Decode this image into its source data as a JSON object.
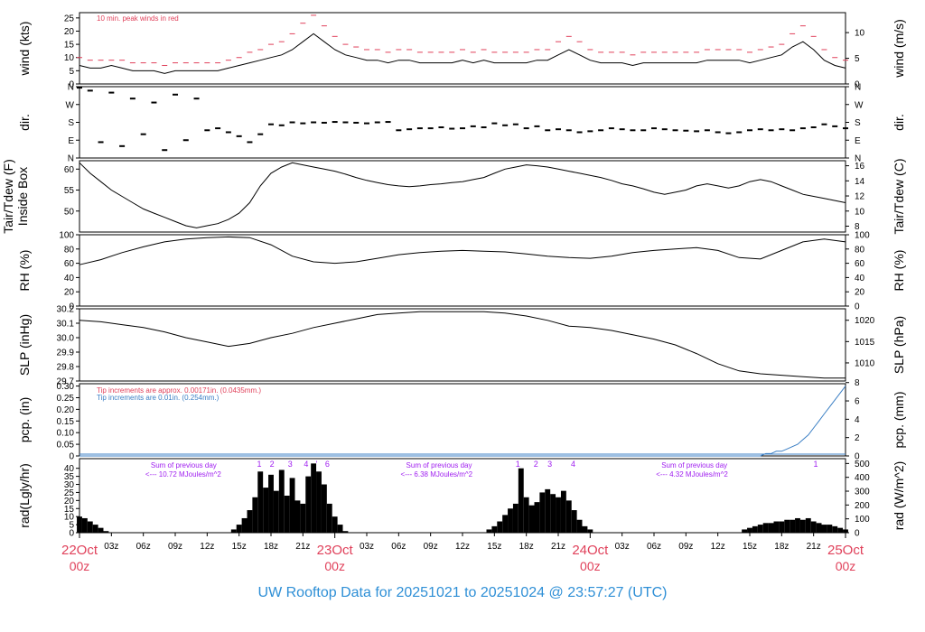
{
  "title": "UW Rooftop Data for 20251021  to  20251024 @ 23:57:27  (UTC)",
  "colors": {
    "peak_red": "#e0405a",
    "precip_blue": "#3b7fc4",
    "radiation_purple": "#a020f0",
    "date_red": "#e0405a",
    "title_blue": "#2e8fd6"
  },
  "x_axis": {
    "hours_total": 72,
    "minor_labels": [
      "03z",
      "06z",
      "09z",
      "12z",
      "15z",
      "18z",
      "21z",
      "03z",
      "06z",
      "09z",
      "12z",
      "15z",
      "18z",
      "21z",
      "03z",
      "06z",
      "09z",
      "12z",
      "15z",
      "18z",
      "21z"
    ],
    "minor_hours": [
      3,
      6,
      9,
      12,
      15,
      18,
      21,
      27,
      30,
      33,
      36,
      39,
      42,
      45,
      51,
      54,
      57,
      60,
      63,
      66,
      69
    ],
    "date_labels": [
      {
        "date": "22Oct",
        "time": "00z",
        "hour": 0
      },
      {
        "date": "23Oct",
        "time": "00z",
        "hour": 24
      },
      {
        "date": "24Oct",
        "time": "00z",
        "hour": 48
      },
      {
        "date": "25Oct",
        "time": "00z",
        "hour": 72
      }
    ]
  },
  "chart_data": [
    {
      "type": "line",
      "panel": "wind",
      "left_label": "wind (kts)",
      "right_label": "wind (m/s)",
      "annotation": "10 min. peak winds in red",
      "left_ticks": [
        0,
        5,
        10,
        15,
        20,
        25
      ],
      "right_ticks": [
        0,
        5,
        10
      ],
      "ylim": [
        0,
        27
      ],
      "x_hours": [
        0,
        1,
        2,
        3,
        4,
        5,
        6,
        7,
        8,
        9,
        10,
        11,
        12,
        13,
        14,
        15,
        16,
        17,
        18,
        19,
        20,
        21,
        22,
        23,
        24,
        25,
        26,
        27,
        28,
        29,
        30,
        31,
        32,
        33,
        34,
        35,
        36,
        37,
        38,
        39,
        40,
        41,
        42,
        43,
        44,
        45,
        46,
        47,
        48,
        49,
        50,
        51,
        52,
        53,
        54,
        55,
        56,
        57,
        58,
        59,
        60,
        61,
        62,
        63,
        64,
        65,
        66,
        67,
        68,
        69,
        70,
        71,
        72
      ],
      "series": [
        {
          "name": "wind",
          "values": [
            7,
            6,
            6,
            7,
            6,
            5,
            5,
            5,
            4,
            5,
            5,
            5,
            5,
            5,
            6,
            7,
            8,
            9,
            10,
            11,
            13,
            16,
            19,
            16,
            13,
            11,
            10,
            9,
            9,
            8,
            9,
            9,
            8,
            8,
            8,
            8,
            9,
            8,
            9,
            8,
            8,
            8,
            8,
            9,
            9,
            11,
            13,
            11,
            9,
            8,
            8,
            8,
            7,
            8,
            8,
            8,
            8,
            8,
            8,
            9,
            9,
            9,
            9,
            8,
            9,
            10,
            11,
            14,
            16,
            13,
            9,
            7,
            6
          ]
        },
        {
          "name": "peak",
          "values": [
            10,
            9,
            9,
            9,
            9,
            8,
            8,
            8,
            7,
            8,
            8,
            8,
            8,
            8,
            9,
            10,
            12,
            13,
            15,
            16,
            19,
            23,
            26,
            22,
            18,
            15,
            14,
            13,
            13,
            12,
            13,
            13,
            12,
            12,
            12,
            12,
            13,
            12,
            13,
            12,
            12,
            12,
            12,
            13,
            13,
            16,
            18,
            16,
            13,
            12,
            12,
            12,
            11,
            12,
            12,
            12,
            12,
            12,
            12,
            13,
            13,
            13,
            13,
            12,
            13,
            14,
            15,
            19,
            22,
            18,
            13,
            10,
            9
          ]
        }
      ]
    },
    {
      "type": "scatter",
      "panel": "dir",
      "left_label": "dir.",
      "right_label": "dir.",
      "left_ticks": [
        "N",
        "E",
        "S",
        "W",
        "N"
      ],
      "right_ticks": [
        "N",
        "E",
        "S",
        "W",
        "N"
      ],
      "ylim": [
        0,
        360
      ],
      "x_hours": [
        0,
        1,
        2,
        3,
        4,
        5,
        6,
        7,
        8,
        9,
        10,
        11,
        12,
        13,
        14,
        15,
        16,
        17,
        18,
        19,
        20,
        21,
        22,
        23,
        24,
        25,
        26,
        27,
        28,
        29,
        30,
        31,
        32,
        33,
        34,
        35,
        36,
        37,
        38,
        39,
        40,
        41,
        42,
        43,
        44,
        45,
        46,
        47,
        48,
        49,
        50,
        51,
        52,
        53,
        54,
        55,
        56,
        57,
        58,
        59,
        60,
        61,
        62,
        63,
        64,
        65,
        66,
        67,
        68,
        69,
        70,
        71,
        72
      ],
      "series": [
        {
          "name": "dir",
          "values": [
            355,
            340,
            80,
            330,
            60,
            300,
            120,
            280,
            40,
            320,
            90,
            300,
            140,
            150,
            130,
            110,
            80,
            120,
            170,
            165,
            180,
            175,
            180,
            178,
            182,
            180,
            178,
            175,
            180,
            182,
            140,
            145,
            150,
            150,
            155,
            148,
            150,
            160,
            155,
            175,
            165,
            170,
            150,
            160,
            140,
            145,
            140,
            130,
            135,
            140,
            150,
            145,
            140,
            140,
            150,
            145,
            140,
            138,
            135,
            140,
            130,
            125,
            130,
            140,
            145,
            140,
            145,
            140,
            150,
            155,
            170,
            160,
            150
          ]
        }
      ]
    },
    {
      "type": "line",
      "panel": "temperature",
      "left_label": "Tair/Tdew (F)\nInside Box",
      "left_label_line1": "Tair/Tdew (F)",
      "left_label_line2": "Inside Box",
      "right_label": "Tair/Tdew (C)",
      "left_ticks": [
        50,
        55,
        60
      ],
      "right_ticks": [
        8,
        10,
        12,
        14,
        16
      ],
      "ylim": [
        45,
        62
      ],
      "x_hours": [
        0,
        1,
        2,
        3,
        4,
        5,
        6,
        7,
        8,
        9,
        10,
        11,
        12,
        13,
        14,
        15,
        16,
        17,
        18,
        19,
        20,
        21,
        22,
        23,
        24,
        25,
        26,
        27,
        28,
        29,
        30,
        31,
        32,
        33,
        34,
        35,
        36,
        37,
        38,
        39,
        40,
        41,
        42,
        43,
        44,
        45,
        46,
        47,
        48,
        49,
        50,
        51,
        52,
        53,
        54,
        55,
        56,
        57,
        58,
        59,
        60,
        61,
        62,
        63,
        64,
        65,
        66,
        67,
        68,
        69,
        70,
        71,
        72
      ],
      "series": [
        {
          "name": "Tair",
          "values": [
            61.5,
            59,
            57,
            55,
            53.5,
            52,
            50.5,
            49.5,
            48.5,
            47.5,
            46.5,
            46,
            46.5,
            47,
            48,
            49.5,
            52,
            56,
            59,
            60.5,
            61.5,
            61,
            60.5,
            60,
            59.5,
            58.8,
            58,
            57.3,
            56.8,
            56.3,
            56,
            55.8,
            56,
            56.3,
            56.5,
            56.8,
            57,
            57.5,
            58,
            59,
            60,
            60.5,
            61,
            60.8,
            60.5,
            60,
            59.5,
            59,
            58.5,
            58,
            57.3,
            56.5,
            56,
            55.3,
            54.5,
            54,
            54.5,
            55,
            56,
            56.5,
            56,
            55.5,
            56,
            57,
            57.5,
            57,
            56,
            55,
            54,
            53.5,
            53,
            52.5,
            52
          ]
        }
      ]
    },
    {
      "type": "line",
      "panel": "rh",
      "left_label": "RH (%)",
      "right_label": "RH (%)",
      "left_ticks": [
        0,
        20,
        40,
        60,
        80,
        100
      ],
      "right_ticks": [
        0,
        20,
        40,
        60,
        80,
        100
      ],
      "ylim": [
        0,
        100
      ],
      "x_hours": [
        0,
        2,
        4,
        6,
        8,
        10,
        12,
        14,
        16,
        18,
        20,
        22,
        24,
        26,
        28,
        30,
        32,
        34,
        36,
        38,
        40,
        42,
        44,
        46,
        48,
        50,
        52,
        54,
        56,
        58,
        60,
        62,
        64,
        66,
        68,
        70,
        72
      ],
      "series": [
        {
          "name": "RH",
          "values": [
            58,
            65,
            75,
            83,
            90,
            94,
            96,
            97,
            96,
            86,
            70,
            62,
            60,
            62,
            67,
            72,
            75,
            77,
            78,
            77,
            76,
            73,
            70,
            68,
            67,
            70,
            75,
            78,
            80,
            82,
            78,
            68,
            66,
            78,
            90,
            94,
            90
          ]
        }
      ]
    },
    {
      "type": "line",
      "panel": "slp",
      "left_label": "SLP (inHg)",
      "right_label": "SLP (hPa)",
      "left_ticks": [
        "29.7",
        "29.8",
        "29.9",
        "30.0",
        "30.1",
        "30.2"
      ],
      "right_ticks": [
        1010,
        1015,
        1020
      ],
      "ylim": [
        29.7,
        30.2
      ],
      "x_hours": [
        0,
        2,
        4,
        6,
        8,
        10,
        12,
        14,
        16,
        18,
        20,
        22,
        24,
        26,
        28,
        30,
        32,
        34,
        36,
        38,
        40,
        42,
        44,
        46,
        48,
        50,
        52,
        54,
        56,
        58,
        60,
        62,
        64,
        66,
        68,
        70,
        72
      ],
      "series": [
        {
          "name": "SLP",
          "values": [
            30.12,
            30.11,
            30.09,
            30.07,
            30.04,
            30.0,
            29.97,
            29.94,
            29.96,
            30.0,
            30.03,
            30.07,
            30.1,
            30.13,
            30.16,
            30.17,
            30.18,
            30.18,
            30.18,
            30.18,
            30.17,
            30.15,
            30.12,
            30.08,
            30.07,
            30.05,
            30.02,
            29.99,
            29.95,
            29.89,
            29.82,
            29.77,
            29.75,
            29.74,
            29.73,
            29.72,
            29.72
          ]
        }
      ]
    },
    {
      "type": "line",
      "panel": "pcp",
      "left_label": "pcp. (in)",
      "right_label": "pcp. (mm)",
      "annotation_red": "Tip increments are approx. 0.00171in. (0.0435mm.)",
      "annotation_blue": "Tip increments are 0.01in. (0.254mm.)",
      "left_ticks": [
        "0",
        "0.05",
        "0.10",
        "0.15",
        "0.20",
        "0.25",
        "0.30"
      ],
      "right_ticks": [
        0,
        2,
        4,
        6,
        8
      ],
      "ylim": [
        0,
        0.31
      ],
      "x_hours": [
        0,
        4,
        8,
        12,
        16,
        20,
        24,
        28,
        32,
        36,
        40,
        44,
        48,
        52,
        56,
        60,
        64,
        64.5,
        65,
        65.5,
        66,
        66.5,
        67,
        67.5,
        68,
        68.5,
        69,
        69.5,
        70,
        70.5,
        71,
        71.5,
        72
      ],
      "series": [
        {
          "name": "pcp",
          "values": [
            0,
            0,
            0,
            0,
            0,
            0,
            0,
            0,
            0,
            0,
            0,
            0,
            0,
            0,
            0,
            0,
            0,
            0.01,
            0.01,
            0.02,
            0.02,
            0.03,
            0.04,
            0.05,
            0.07,
            0.09,
            0.12,
            0.15,
            0.18,
            0.21,
            0.24,
            0.27,
            0.3
          ]
        }
      ]
    },
    {
      "type": "bar",
      "panel": "rad",
      "left_label": "rad(Lgly/hr)",
      "right_label": "rad (W/m^2)",
      "left_ticks": [
        0,
        5,
        10,
        15,
        20,
        25,
        30,
        35,
        40
      ],
      "right_ticks": [
        0,
        100,
        200,
        300,
        400,
        500
      ],
      "ylim": [
        0,
        46
      ],
      "annotations": [
        {
          "line1": "Sum of previous day",
          "line2": "<--- 10.72 MJoules/m^2",
          "hour": 5
        },
        {
          "line1": "Sum of previous day",
          "line2": "<--- 6.38 MJoules/m^2",
          "hour": 29
        },
        {
          "line1": "Sum of previous day",
          "line2": "<--- 4.32 MJoules/m^2",
          "hour": 53
        }
      ],
      "markers": [
        {
          "label": "1",
          "hour": 16.9
        },
        {
          "label": "2",
          "hour": 18.1
        },
        {
          "label": "3",
          "hour": 19.8
        },
        {
          "label": "4",
          "hour": 21.3
        },
        {
          "label": "'",
          "hour": 22.3
        },
        {
          "label": "6",
          "hour": 23.3
        },
        {
          "label": "1",
          "hour": 41.2
        },
        {
          "label": "2",
          "hour": 42.9
        },
        {
          "label": "3",
          "hour": 44.2
        },
        {
          "label": "4",
          "hour": 46.4
        },
        {
          "label": "1",
          "hour": 69.2
        }
      ],
      "x_hours": [
        0,
        0.5,
        1,
        1.5,
        2,
        2.5,
        3,
        14,
        14.5,
        15,
        15.5,
        16,
        16.5,
        17,
        17.5,
        18,
        18.5,
        19,
        19.5,
        20,
        20.5,
        21,
        21.5,
        22,
        22.5,
        23,
        23.5,
        24,
        24.5,
        25,
        38,
        38.5,
        39,
        39.5,
        40,
        40.5,
        41,
        41.5,
        42,
        42.5,
        43,
        43.5,
        44,
        44.5,
        45,
        45.5,
        46,
        46.5,
        47,
        47.5,
        48,
        48.5,
        62,
        62.5,
        63,
        63.5,
        64,
        64.5,
        65,
        65.5,
        66,
        66.5,
        67,
        67.5,
        68,
        68.5,
        69,
        69.5,
        70,
        70.5,
        71,
        71.5,
        72
      ],
      "series": [
        {
          "name": "rad",
          "values": [
            10,
            9,
            7,
            5,
            3,
            1,
            0,
            0,
            2,
            5,
            9,
            14,
            22,
            38,
            28,
            36,
            26,
            39,
            23,
            34,
            20,
            18,
            35,
            43,
            38,
            30,
            18,
            10,
            5,
            1,
            0,
            2,
            4,
            7,
            11,
            15,
            18,
            40,
            22,
            17,
            19,
            25,
            27,
            24,
            22,
            26,
            20,
            14,
            8,
            4,
            2,
            0,
            0,
            2,
            3,
            4,
            5,
            6,
            6,
            7,
            7,
            8,
            8,
            9,
            8,
            9,
            7,
            6,
            5,
            5,
            4,
            3,
            2
          ]
        }
      ]
    }
  ]
}
